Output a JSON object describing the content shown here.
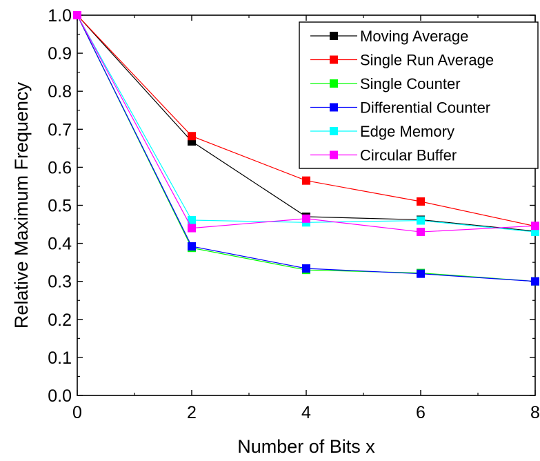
{
  "chart_data": {
    "type": "line",
    "title": "",
    "xlabel": "Number of Bits x",
    "ylabel": "Relative Maximum Frequency",
    "xlim": [
      0,
      8
    ],
    "ylim": [
      0,
      1.0
    ],
    "x_ticks": [
      "0",
      "2",
      "4",
      "6",
      "8"
    ],
    "y_ticks": [
      "0.0",
      "0.1",
      "0.2",
      "0.3",
      "0.4",
      "0.5",
      "0.6",
      "0.7",
      "0.8",
      "0.9",
      "1.0"
    ],
    "grid": false,
    "legend_position": "top-right",
    "x": [
      0,
      2,
      4,
      6,
      8
    ],
    "series": [
      {
        "name": "Moving Average",
        "color": "#000000",
        "values": [
          1.0,
          0.668,
          0.47,
          0.462,
          0.432
        ]
      },
      {
        "name": "Single Run Average",
        "color": "#ff0000",
        "values": [
          1.0,
          0.682,
          0.565,
          0.51,
          0.445
        ]
      },
      {
        "name": "Single Counter",
        "color": "#00ff00",
        "values": [
          1.0,
          0.388,
          0.33,
          0.322,
          0.3
        ]
      },
      {
        "name": "Differential Counter",
        "color": "#0000ff",
        "values": [
          1.0,
          0.392,
          0.334,
          0.32,
          0.3
        ]
      },
      {
        "name": "Edge Memory",
        "color": "#00ffff",
        "values": [
          1.0,
          0.461,
          0.455,
          0.46,
          0.43
        ]
      },
      {
        "name": "Circular Buffer",
        "color": "#ff00ff",
        "values": [
          1.0,
          0.44,
          0.465,
          0.43,
          0.446
        ]
      }
    ]
  }
}
